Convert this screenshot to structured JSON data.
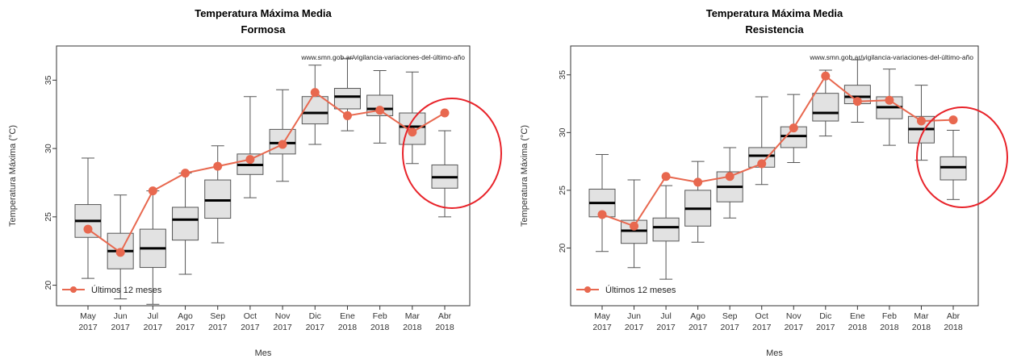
{
  "chart_data": [
    {
      "type": "box",
      "title": "Temperatura Máxima Media",
      "subtitle": "Formosa",
      "source_text": "www.smn.gob.ar/vigilancia-variaciones-del-último-año",
      "xlabel": "Mes",
      "ylabel": "Temperatura Máxima (°C)",
      "ylim": [
        18.5,
        37.5
      ],
      "yticks": [
        20,
        25,
        30,
        35
      ],
      "categories": [
        [
          "May",
          "2017"
        ],
        [
          "Jun",
          "2017"
        ],
        [
          "Jul",
          "2017"
        ],
        [
          "Ago",
          "2017"
        ],
        [
          "Sep",
          "2017"
        ],
        [
          "Oct",
          "2017"
        ],
        [
          "Nov",
          "2017"
        ],
        [
          "Dic",
          "2017"
        ],
        [
          "Ene",
          "2018"
        ],
        [
          "Feb",
          "2018"
        ],
        [
          "Mar",
          "2018"
        ],
        [
          "Abr",
          "2018"
        ]
      ],
      "boxes": [
        {
          "min": 20.5,
          "q1": 23.5,
          "median": 24.7,
          "q3": 25.9,
          "max": 29.3
        },
        {
          "min": 19.0,
          "q1": 21.2,
          "median": 22.5,
          "q3": 23.8,
          "max": 26.6
        },
        {
          "min": 18.6,
          "q1": 21.3,
          "median": 22.7,
          "q3": 24.1,
          "max": 26.9
        },
        {
          "min": 20.8,
          "q1": 23.3,
          "median": 24.8,
          "q3": 25.7,
          "max": 28.2
        },
        {
          "min": 23.1,
          "q1": 24.9,
          "median": 26.2,
          "q3": 27.7,
          "max": 30.2
        },
        {
          "min": 26.4,
          "q1": 28.1,
          "median": 28.8,
          "q3": 29.6,
          "max": 33.8
        },
        {
          "min": 27.6,
          "q1": 29.6,
          "median": 30.4,
          "q3": 31.4,
          "max": 34.3
        },
        {
          "min": 30.3,
          "q1": 31.8,
          "median": 32.6,
          "q3": 33.8,
          "max": 36.1
        },
        {
          "min": 31.3,
          "q1": 32.9,
          "median": 33.8,
          "q3": 34.4,
          "max": 36.6
        },
        {
          "min": 30.4,
          "q1": 32.4,
          "median": 32.9,
          "q3": 33.9,
          "max": 35.7
        },
        {
          "min": 28.9,
          "q1": 30.3,
          "median": 31.6,
          "q3": 32.6,
          "max": 35.6
        },
        {
          "min": 25.0,
          "q1": 27.1,
          "median": 27.9,
          "q3": 28.8,
          "max": 31.3
        }
      ],
      "series": [
        {
          "name": "Últimos 12 meses",
          "values": [
            24.1,
            22.4,
            26.9,
            28.2,
            28.7,
            29.2,
            30.3,
            34.1,
            32.4,
            32.8,
            31.2,
            32.6
          ]
        }
      ],
      "highlight": {
        "from_index": 10,
        "to_index": 11,
        "color": "#e8232a"
      },
      "legend_position": "bottom-left",
      "colors": {
        "line": "#e8684f",
        "box_fill": "#e2e2e2",
        "box_stroke": "#555555",
        "median": "#000000",
        "highlight": "#e8232a"
      }
    },
    {
      "type": "box",
      "title": "Temperatura Máxima Media",
      "subtitle": "Resistencia",
      "source_text": "www.smn.gob.ar/vigilancia-variaciones-del-último-año",
      "xlabel": "Mes",
      "ylabel": "Temperatura Máxima (°C)",
      "ylim": [
        15.0,
        37.5
      ],
      "yticks": [
        20,
        25,
        30,
        35
      ],
      "categories": [
        [
          "May",
          "2017"
        ],
        [
          "Jun",
          "2017"
        ],
        [
          "Jul",
          "2017"
        ],
        [
          "Ago",
          "2017"
        ],
        [
          "Sep",
          "2017"
        ],
        [
          "Oct",
          "2017"
        ],
        [
          "Nov",
          "2017"
        ],
        [
          "Dic",
          "2017"
        ],
        [
          "Ene",
          "2018"
        ],
        [
          "Feb",
          "2018"
        ],
        [
          "Mar",
          "2018"
        ],
        [
          "Abr",
          "2018"
        ]
      ],
      "boxes": [
        {
          "min": 19.7,
          "q1": 22.7,
          "median": 23.9,
          "q3": 25.1,
          "max": 28.1
        },
        {
          "min": 18.3,
          "q1": 20.4,
          "median": 21.5,
          "q3": 22.4,
          "max": 25.9
        },
        {
          "min": 17.3,
          "q1": 20.6,
          "median": 21.8,
          "q3": 22.6,
          "max": 25.4
        },
        {
          "min": 20.5,
          "q1": 21.9,
          "median": 23.4,
          "q3": 25.0,
          "max": 27.5
        },
        {
          "min": 22.6,
          "q1": 24.0,
          "median": 25.3,
          "q3": 26.6,
          "max": 28.7
        },
        {
          "min": 25.5,
          "q1": 27.0,
          "median": 28.0,
          "q3": 28.7,
          "max": 33.1
        },
        {
          "min": 27.4,
          "q1": 28.7,
          "median": 29.7,
          "q3": 30.5,
          "max": 33.3
        },
        {
          "min": 29.7,
          "q1": 31.0,
          "median": 31.7,
          "q3": 33.4,
          "max": 35.4
        },
        {
          "min": 30.9,
          "q1": 32.5,
          "median": 33.1,
          "q3": 34.1,
          "max": 36.3
        },
        {
          "min": 28.9,
          "q1": 31.2,
          "median": 32.2,
          "q3": 33.1,
          "max": 35.5
        },
        {
          "min": 27.6,
          "q1": 29.1,
          "median": 30.3,
          "q3": 31.4,
          "max": 34.1
        },
        {
          "min": 24.2,
          "q1": 25.9,
          "median": 27.0,
          "q3": 27.9,
          "max": 30.2
        }
      ],
      "series": [
        {
          "name": "Últimos 12 meses",
          "values": [
            22.9,
            21.9,
            26.2,
            25.7,
            26.2,
            27.3,
            30.4,
            34.9,
            32.7,
            32.8,
            31.0,
            31.1
          ]
        }
      ],
      "highlight": {
        "from_index": 10,
        "to_index": 11,
        "color": "#e8232a"
      },
      "legend_position": "bottom-left",
      "colors": {
        "line": "#e8684f",
        "box_fill": "#e2e2e2",
        "box_stroke": "#555555",
        "median": "#000000",
        "highlight": "#e8232a"
      }
    }
  ]
}
